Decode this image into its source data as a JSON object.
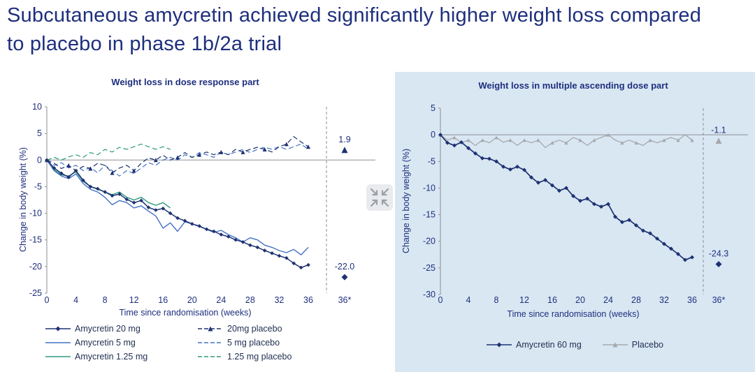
{
  "page": {
    "title": "Subcutaneous amycretin achieved significantly higher weight loss compared to placebo in phase 1b/2a trial"
  },
  "colors": {
    "title_navy": "#1e2f7d",
    "navy": "#1e3272",
    "blue": "#4472c4",
    "teal": "#2f9a7d",
    "gray": "#a6a9ad",
    "axis_gray": "#8c8f94",
    "panel_blue": "#d9e7f3"
  },
  "chart_data": [
    {
      "type": "line",
      "title": "Weight loss in dose response part",
      "xlabel": "Time since randomisation (weeks)",
      "ylabel": "Change in body weight (%)",
      "xlim": [
        0,
        36
      ],
      "ylim": [
        -25,
        10
      ],
      "xticks": [
        0,
        4,
        8,
        12,
        16,
        20,
        24,
        28,
        32,
        36
      ],
      "final_tick": "36*",
      "yticks": [
        10,
        5,
        0,
        -5,
        -10,
        -15,
        -20,
        -25
      ],
      "grid": false,
      "legend_position": "bottom",
      "series": [
        {
          "name": "Amycretin 20 mg",
          "color": "#1e3272",
          "dash": false,
          "marker": "diamond",
          "marker_every": 1,
          "marker_size": 2.8,
          "width": 1.5,
          "values": [
            0,
            -1.5,
            -2.5,
            -3.2,
            -2.0,
            -3.8,
            -5.0,
            -5.4,
            -6.0,
            -6.7,
            -6.4,
            -7.4,
            -8.0,
            -7.6,
            -8.9,
            -9.4,
            -9.1,
            -10.0,
            -10.9,
            -11.4,
            -12.0,
            -12.4,
            -13.0,
            -13.4,
            -14.0,
            -14.4,
            -15.0,
            -15.4,
            -16.0,
            -16.4,
            -17.0,
            -17.5,
            -18.0,
            -18.4,
            -19.4,
            -20.2,
            -19.7
          ]
        },
        {
          "name": "20mg placebo",
          "color": "#1e3272",
          "dash": true,
          "marker": "triangle",
          "marker_every": 3,
          "marker_size": 3,
          "width": 1.2,
          "values": [
            0,
            -0.6,
            -1.6,
            -1.0,
            -2.0,
            -1.2,
            -1.6,
            -0.6,
            -1.0,
            -2.4,
            -1.5,
            -1.0,
            -2.0,
            -0.6,
            0.4,
            0.0,
            0.9,
            0.0,
            0.5,
            1.4,
            0.5,
            1.0,
            1.5,
            1.0,
            1.5,
            1.0,
            2.0,
            1.5,
            2.0,
            2.4,
            2.0,
            1.5,
            2.5,
            3.0,
            4.4,
            3.4,
            2.5
          ]
        },
        {
          "name": "Amycretin 5 mg",
          "color": "#4472c4",
          "dash": false,
          "marker": null,
          "width": 1.4,
          "values": [
            0,
            -2.0,
            -3.0,
            -3.5,
            -2.6,
            -4.4,
            -5.5,
            -6.0,
            -7.0,
            -8.4,
            -7.6,
            -8.0,
            -9.0,
            -8.6,
            -9.6,
            -10.5,
            -12.8,
            -11.8,
            -13.4,
            -11.6,
            -12.0,
            -12.5,
            -13.0,
            -13.6,
            -13.2,
            -14.0,
            -14.6,
            -15.4,
            -14.6,
            -15.0,
            -16.0,
            -16.4,
            -17.0,
            -17.4,
            -16.8,
            -17.8,
            -16.4
          ]
        },
        {
          "name": "5 mg placebo",
          "color": "#4472c4",
          "dash": true,
          "marker": null,
          "width": 1.2,
          "values": [
            0,
            -1.0,
            -0.5,
            -1.5,
            -1.0,
            -2.0,
            -1.4,
            -2.4,
            -1.0,
            -2.0,
            -3.0,
            -2.0,
            -2.5,
            -1.5,
            -0.5,
            -1.0,
            0.0,
            0.5,
            0.0,
            1.0,
            0.5,
            1.4,
            1.0,
            0.5,
            1.5,
            1.0,
            1.5,
            2.0,
            1.4,
            2.0,
            2.4,
            2.0,
            2.5,
            2.0,
            2.5,
            3.0,
            2.0
          ]
        },
        {
          "name": "Amycretin 1.25 mg",
          "color": "#2f9a7d",
          "dash": false,
          "marker": null,
          "width": 1.4,
          "values": [
            0,
            -1.8,
            -2.8,
            -3.0,
            -2.2,
            -4.0,
            -5.0,
            -5.5,
            -6.0,
            -6.5,
            -6.0,
            -7.0,
            -7.5,
            -7.0,
            -8.0,
            -8.5,
            -8.0,
            -9.0
          ]
        },
        {
          "name": "1.25 mg placebo",
          "color": "#2f9a7d",
          "dash": true,
          "marker": null,
          "width": 1.2,
          "values": [
            0,
            0.5,
            0.0,
            0.6,
            1.0,
            0.5,
            1.4,
            1.0,
            2.0,
            1.5,
            2.4,
            2.0,
            2.5,
            3.0,
            2.5,
            2.0,
            2.5,
            2.0
          ]
        }
      ],
      "endpoints": [
        {
          "label": "1.9",
          "value": 1.9,
          "marker": "triangle",
          "color": "#1e3272"
        },
        {
          "label": "-22.0",
          "value": -22.0,
          "marker": "diamond",
          "color": "#1e3272"
        }
      ]
    },
    {
      "type": "line",
      "title": "Weight loss in multiple ascending dose part",
      "xlabel": "Time since randomisation (weeks)",
      "ylabel": "Change in body weight (%)",
      "xlim": [
        0,
        36
      ],
      "ylim": [
        -30,
        5
      ],
      "xticks": [
        0,
        4,
        8,
        12,
        16,
        20,
        24,
        28,
        32,
        36
      ],
      "final_tick": "36*",
      "yticks": [
        5,
        0,
        -5,
        -10,
        -15,
        -20,
        -25,
        -30
      ],
      "grid": false,
      "legend_position": "bottom",
      "series": [
        {
          "name": "Amycretin 60 mg",
          "color": "#1e3272",
          "dash": false,
          "marker": "diamond",
          "marker_every": 1,
          "marker_size": 3,
          "width": 1.7,
          "values": [
            0,
            -1.5,
            -2.0,
            -1.4,
            -2.5,
            -3.5,
            -4.4,
            -4.5,
            -5.0,
            -6.0,
            -6.5,
            -6.0,
            -6.6,
            -8.0,
            -9.0,
            -8.5,
            -9.5,
            -10.5,
            -10.0,
            -11.5,
            -12.4,
            -12.0,
            -13.0,
            -13.5,
            -13.0,
            -15.4,
            -16.4,
            -16.0,
            -17.0,
            -18.0,
            -18.5,
            -19.5,
            -20.5,
            -21.4,
            -22.4,
            -23.5,
            -23.0
          ]
        },
        {
          "name": "Placebo",
          "color": "#a6a9ad",
          "dash": false,
          "marker": "triangle",
          "marker_every": 2,
          "marker_size": 2.6,
          "width": 1.3,
          "values": [
            0,
            -1.0,
            -0.5,
            -1.5,
            -1.0,
            -2.0,
            -1.0,
            -1.5,
            -0.5,
            -1.4,
            -1.0,
            -2.0,
            -1.0,
            -1.5,
            -1.0,
            -2.4,
            -1.5,
            -1.0,
            -1.5,
            -0.5,
            -1.0,
            -2.0,
            -1.0,
            -0.5,
            0.0,
            -1.0,
            -1.5,
            -1.0,
            -1.5,
            -2.0,
            -1.0,
            -1.5,
            -1.0,
            -0.5,
            -1.0,
            0.0,
            -1.0
          ]
        }
      ],
      "endpoints": [
        {
          "label": "-1.1",
          "value": -1.1,
          "marker": "triangle",
          "color": "#a6a9ad"
        },
        {
          "label": "-24.3",
          "value": -24.3,
          "marker": "diamond",
          "color": "#1e3272"
        }
      ]
    }
  ]
}
